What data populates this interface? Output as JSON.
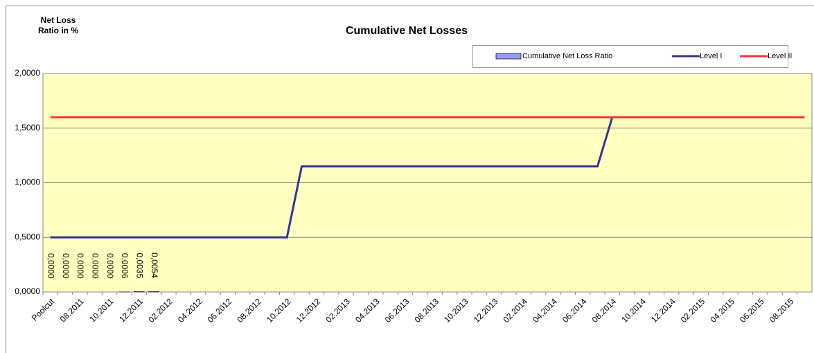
{
  "chart_data": {
    "type": "bar_line",
    "title": "Cumulative Net Losses",
    "y_label": "Net Loss Ratio in %",
    "categories": [
      "Poolcut",
      null,
      "08.2011",
      null,
      "10.2011",
      null,
      "12.2011",
      null,
      "02.2012",
      null,
      "04.2012",
      null,
      "06.2012",
      null,
      "08.2012",
      null,
      "10.2012",
      null,
      "12.2012",
      null,
      "02.2013",
      null,
      "04.2013",
      null,
      "06.2013",
      null,
      "08.2013",
      null,
      "10.2013",
      null,
      "12.2013",
      null,
      "02.2014",
      null,
      "04.2014",
      null,
      "06.2014",
      null,
      "08.2014",
      null,
      "10.2014",
      null,
      "12.2014",
      null,
      "02.2015",
      null,
      "04.2015",
      null,
      "06.2015",
      null,
      "08.2015",
      null
    ],
    "series": [
      {
        "name": "Cumulative Net Loss Ratio",
        "kind": "bar",
        "color": "#9999ff",
        "values": [
          0,
          0,
          0,
          0,
          0,
          0.0006,
          0.0035,
          0.0054,
          null,
          null,
          null,
          null,
          null,
          null,
          null,
          null,
          null,
          null,
          null,
          null,
          null,
          null,
          null,
          null,
          null,
          null,
          null,
          null,
          null,
          null,
          null,
          null,
          null,
          null,
          null,
          null,
          null,
          null,
          null,
          null,
          null,
          null,
          null,
          null,
          null,
          null,
          null,
          null,
          null,
          null,
          null,
          null
        ],
        "value_labels": [
          "0,0000",
          "0,0000",
          "0,0000",
          "0,0000",
          "0,0000",
          "0,0006",
          "0,0035",
          "0,0054",
          null,
          null,
          null,
          null,
          null,
          null,
          null,
          null,
          null,
          null,
          null,
          null,
          null,
          null,
          null,
          null,
          null,
          null,
          null,
          null,
          null,
          null,
          null,
          null,
          null,
          null,
          null,
          null,
          null,
          null,
          null,
          null,
          null,
          null,
          null,
          null,
          null,
          null,
          null,
          null,
          null,
          null,
          null,
          null
        ]
      },
      {
        "name": "Level I",
        "kind": "line",
        "color": "#333399",
        "values": [
          0.5,
          0.5,
          0.5,
          0.5,
          0.5,
          0.5,
          0.5,
          0.5,
          0.5,
          0.5,
          0.5,
          0.5,
          0.5,
          0.5,
          0.5,
          0.5,
          0.5,
          1.15,
          1.15,
          1.15,
          1.15,
          1.15,
          1.15,
          1.15,
          1.15,
          1.15,
          1.15,
          1.15,
          1.15,
          1.15,
          1.15,
          1.15,
          1.15,
          1.15,
          1.15,
          1.15,
          1.15,
          1.15,
          1.6,
          1.6,
          1.6,
          1.6,
          1.6,
          1.6,
          1.6,
          1.6,
          1.6,
          1.6,
          1.6,
          1.6,
          1.6,
          1.6
        ]
      },
      {
        "name": "Level II",
        "kind": "line",
        "color": "#ff3333",
        "values": [
          1.6,
          1.6,
          1.6,
          1.6,
          1.6,
          1.6,
          1.6,
          1.6,
          1.6,
          1.6,
          1.6,
          1.6,
          1.6,
          1.6,
          1.6,
          1.6,
          1.6,
          1.6,
          1.6,
          1.6,
          1.6,
          1.6,
          1.6,
          1.6,
          1.6,
          1.6,
          1.6,
          1.6,
          1.6,
          1.6,
          1.6,
          1.6,
          1.6,
          1.6,
          1.6,
          1.6,
          1.6,
          1.6,
          1.6,
          1.6,
          1.6,
          1.6,
          1.6,
          1.6,
          1.6,
          1.6,
          1.6,
          1.6,
          1.6,
          1.6,
          1.6,
          1.6
        ]
      }
    ],
    "ylim": [
      0,
      2
    ],
    "yticks": [
      {
        "value": 0,
        "label": "0,0000"
      },
      {
        "value": 0.5,
        "label": "0,5000"
      },
      {
        "value": 1,
        "label": "1,0000"
      },
      {
        "value": 1.5,
        "label": "1,5000"
      },
      {
        "value": 2,
        "label": "2,0000"
      }
    ],
    "grid": true,
    "plot_background": "#ffffc0"
  }
}
